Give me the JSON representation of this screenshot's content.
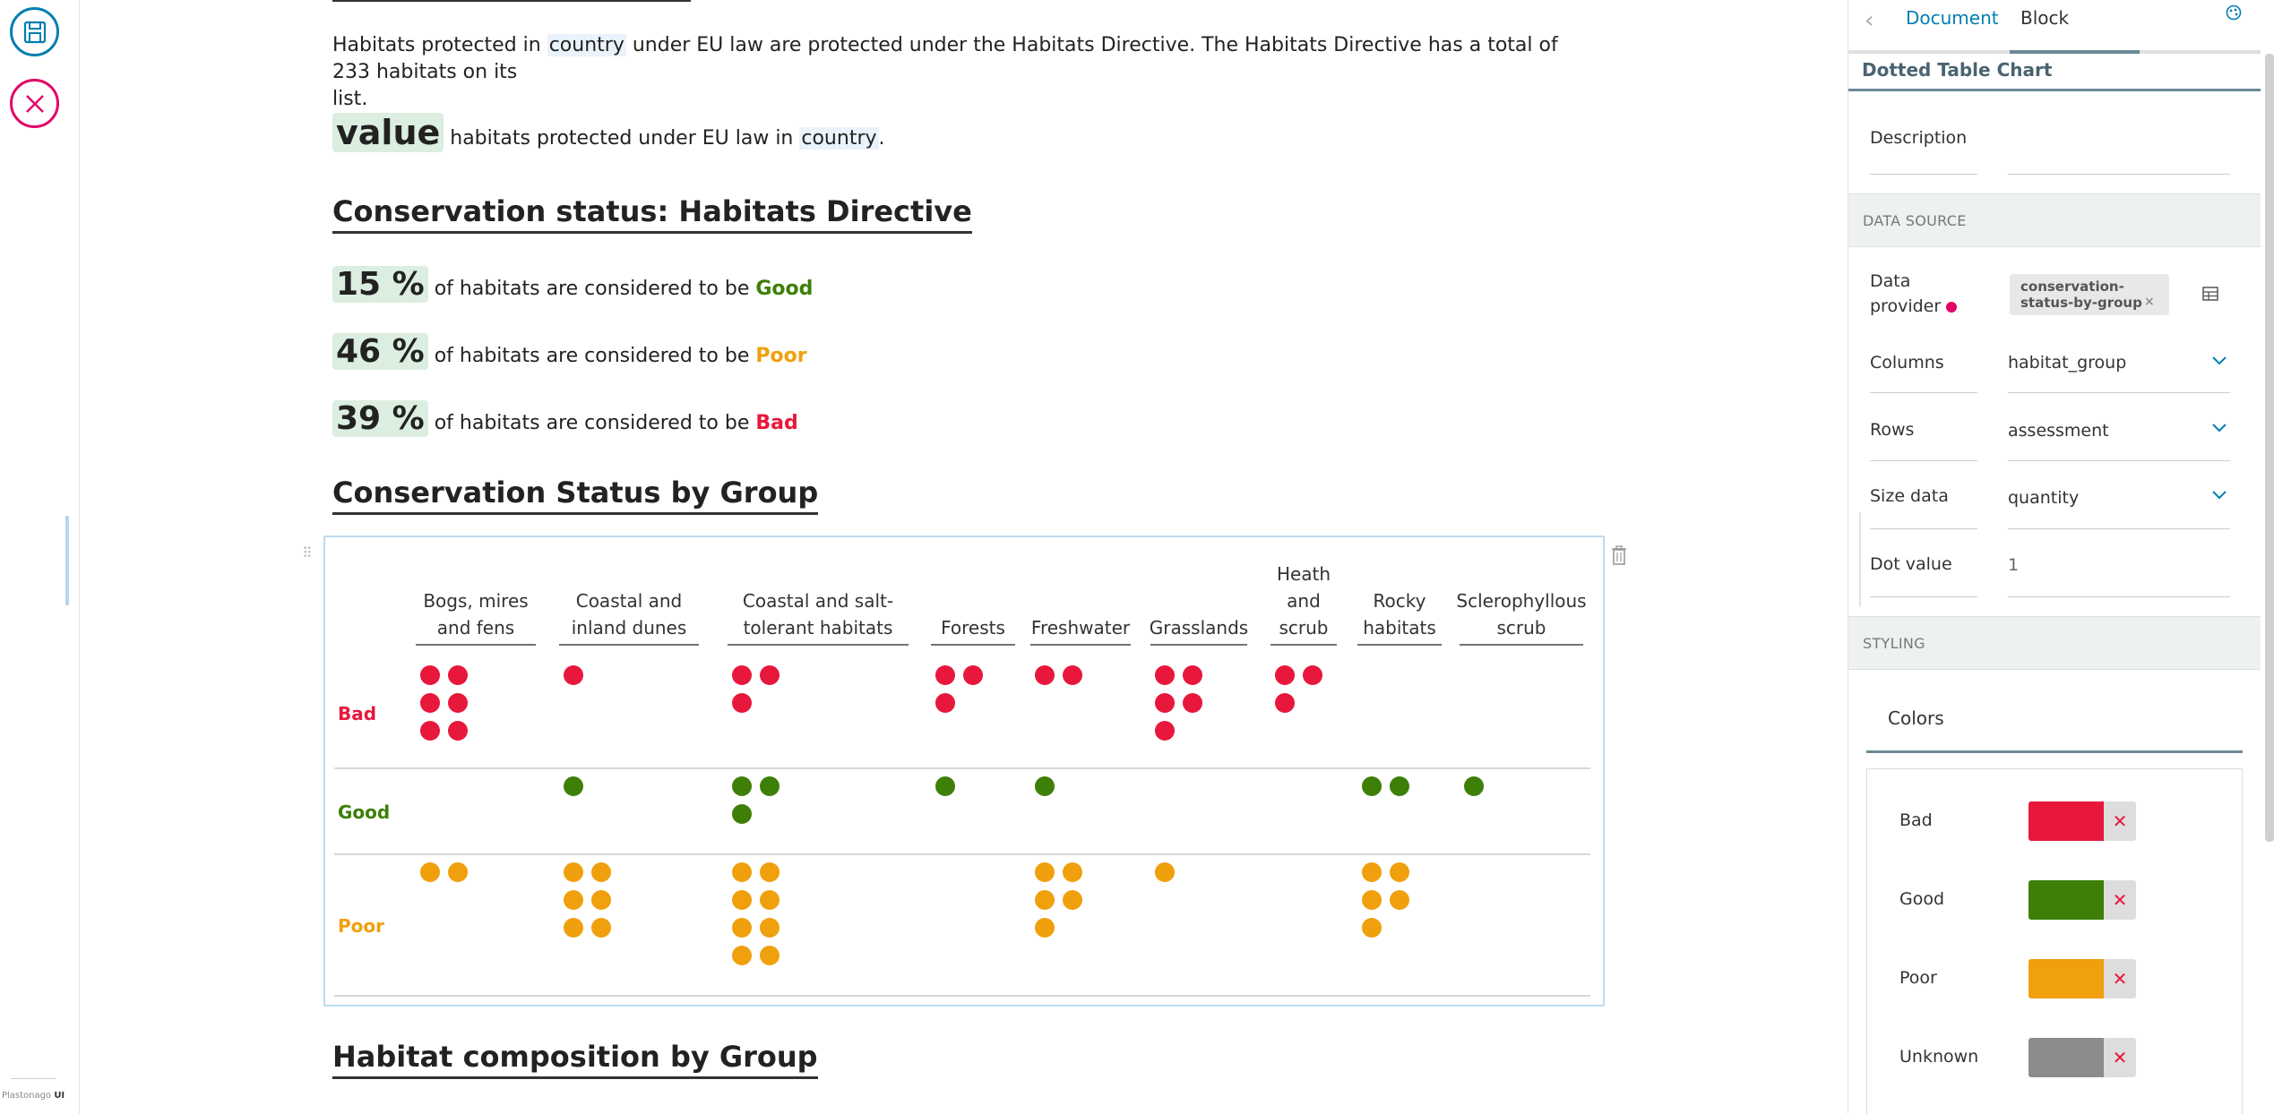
{
  "toolbar": {
    "save_icon": "save-icon",
    "close_icon": "close-icon",
    "brand_prefix": "Plastonago",
    "brand_suffix": "UI"
  },
  "doc": {
    "intro_a": "Habitats protected in ",
    "intro_country": "country",
    "intro_b": " under EU law are protected under the Habitats Directive. The Habitats Directive has a total of 233 habitats on its",
    "intro_c": "list.",
    "value_word": "value",
    "value_a": " habitats protected under EU law in ",
    "value_country": "country",
    "value_b": ".",
    "h_conservation": "Conservation status: Habitats Directive",
    "stat_good_num": "15 %",
    "stat_good_text": " of habitats are considered to be ",
    "stat_good_label": "Good",
    "stat_poor_num": "46 %",
    "stat_poor_text": " of habitats are considered to be ",
    "stat_poor_label": "Poor",
    "stat_bad_num": "39 %",
    "stat_bad_text": " of habitats are considered to be ",
    "stat_bad_label": "Bad",
    "h_by_group": "Conservation Status by Group",
    "h_composition": "Habitat composition by Group"
  },
  "chart_data": {
    "type": "table",
    "chart_kind": "dotted table",
    "columns": [
      [
        "Bogs, mires",
        "and fens"
      ],
      [
        "Coastal and",
        "inland dunes"
      ],
      [
        "Coastal and salt-",
        "tolerant habitats"
      ],
      [
        "Forests"
      ],
      [
        "Freshwater"
      ],
      [
        "Grasslands"
      ],
      [
        "Heath",
        "and",
        "scrub"
      ],
      [
        "Rocky",
        "habitats"
      ],
      [
        "Sclerophyllous",
        "scrub"
      ]
    ],
    "rows": [
      "Bad",
      "Good",
      "Poor"
    ],
    "values": {
      "Bad": [
        6,
        1,
        3,
        3,
        2,
        5,
        3,
        0,
        0
      ],
      "Good": [
        0,
        1,
        3,
        1,
        1,
        0,
        0,
        2,
        1
      ],
      "Poor": [
        2,
        6,
        8,
        0,
        5,
        1,
        0,
        5,
        0
      ]
    },
    "dot_value": 1,
    "dots_per_line": 2,
    "colors": {
      "Bad": "#e8173c",
      "Good": "#3d7f07",
      "Poor": "#f0a00d"
    }
  },
  "sidebar": {
    "tab_document": "Document",
    "tab_block": "Block",
    "section_title": "Dotted Table Chart",
    "description_label": "Description",
    "data_source_band": "DATA SOURCE",
    "provider_label_a": "Data",
    "provider_label_b": "provider",
    "provider_chip_a": "conservation-",
    "provider_chip_b": "status-by-group",
    "chip_close": "×",
    "columns_label": "Columns",
    "columns_value": "habitat_group",
    "rows_label": "Rows",
    "rows_value": "assessment",
    "size_label": "Size data",
    "size_value": "quantity",
    "dot_value_label": "Dot value",
    "dot_value_value": "1",
    "styling_band": "STYLING",
    "colors_tab": "Colors",
    "color_rows": [
      {
        "name": "Bad",
        "color": "#e8173c"
      },
      {
        "name": "Good",
        "color": "#3d7f07"
      },
      {
        "name": "Poor",
        "color": "#f0a00d"
      },
      {
        "name": "Unknown",
        "color": "#8c8c8c"
      }
    ],
    "color_remove": "✕"
  }
}
